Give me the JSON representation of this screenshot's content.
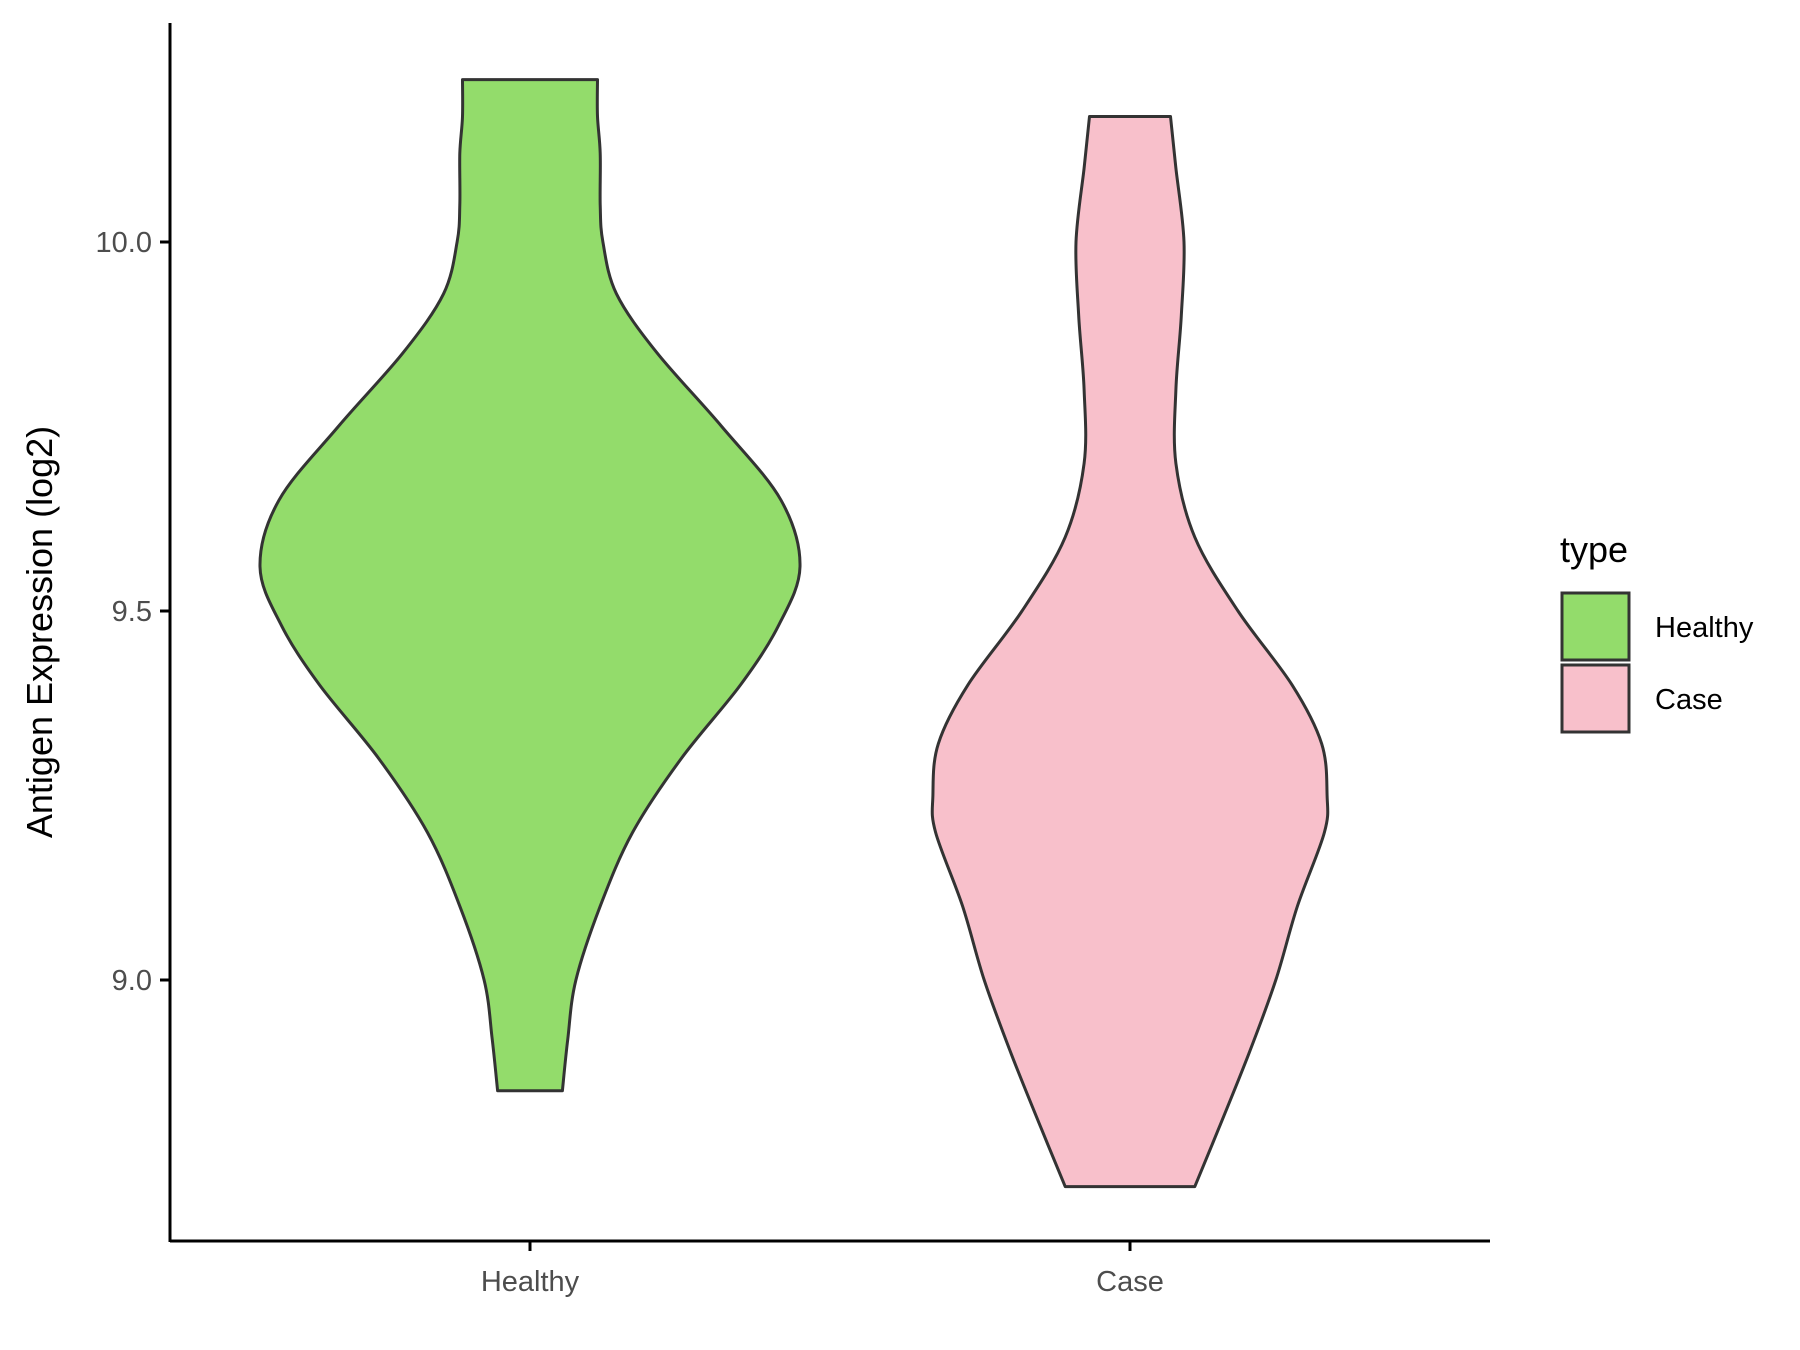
{
  "chart_data": {
    "type": "violin",
    "title": "",
    "xlabel": "",
    "ylabel": "Antigen Expression (log2)",
    "categories": [
      "Healthy",
      "Case"
    ],
    "ylim": [
      8.65,
      10.3
    ],
    "yticks": [
      9.0,
      9.5,
      10.0
    ],
    "ytick_labels": [
      "9.0",
      "9.5",
      "10.0"
    ],
    "grid": false,
    "legend": {
      "title": "type",
      "position": "right",
      "entries": [
        {
          "label": "Healthy",
          "color": "#93dc6b"
        },
        {
          "label": "Case",
          "color": "#f8c0cb"
        }
      ]
    },
    "series": [
      {
        "category": "Healthy",
        "color": "#93dc6b",
        "min": 8.85,
        "max": 10.22,
        "density_profile": [
          [
            8.85,
            0.12
          ],
          [
            8.92,
            0.14
          ],
          [
            9.0,
            0.17
          ],
          [
            9.1,
            0.26
          ],
          [
            9.2,
            0.38
          ],
          [
            9.3,
            0.56
          ],
          [
            9.4,
            0.78
          ],
          [
            9.48,
            0.92
          ],
          [
            9.56,
            1.0
          ],
          [
            9.65,
            0.93
          ],
          [
            9.75,
            0.71
          ],
          [
            9.85,
            0.47
          ],
          [
            9.93,
            0.32
          ],
          [
            10.0,
            0.27
          ],
          [
            10.05,
            0.26
          ],
          [
            10.12,
            0.26
          ],
          [
            10.17,
            0.25
          ],
          [
            10.22,
            0.25
          ]
        ]
      },
      {
        "category": "Case",
        "color": "#f8c0cb",
        "min": 8.72,
        "max": 10.17,
        "density_profile": [
          [
            8.72,
            0.24
          ],
          [
            8.8,
            0.33
          ],
          [
            8.9,
            0.44
          ],
          [
            9.0,
            0.54
          ],
          [
            9.1,
            0.62
          ],
          [
            9.2,
            0.72
          ],
          [
            9.25,
            0.73
          ],
          [
            9.32,
            0.71
          ],
          [
            9.4,
            0.6
          ],
          [
            9.5,
            0.4
          ],
          [
            9.6,
            0.24
          ],
          [
            9.7,
            0.17
          ],
          [
            9.8,
            0.17
          ],
          [
            9.9,
            0.19
          ],
          [
            10.0,
            0.2
          ],
          [
            10.1,
            0.17
          ],
          [
            10.17,
            0.15
          ]
        ]
      }
    ]
  }
}
